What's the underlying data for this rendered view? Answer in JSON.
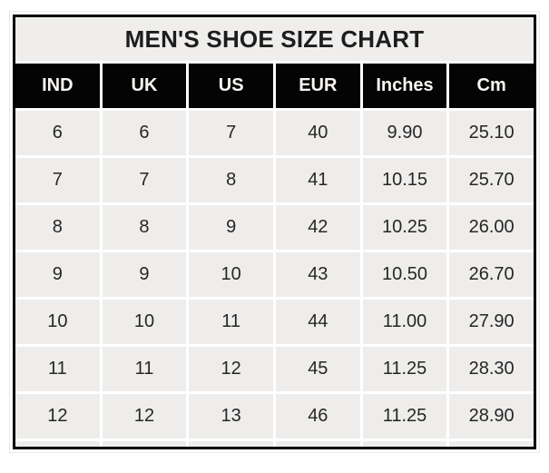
{
  "chart": {
    "title": "MEN'S SHOE SIZE CHART",
    "columns": [
      "IND",
      "UK",
      "US",
      "EUR",
      "Inches",
      "Cm"
    ],
    "rows": [
      [
        "6",
        "6",
        "7",
        "40",
        "9.90",
        "25.10"
      ],
      [
        "7",
        "7",
        "8",
        "41",
        "10.15",
        "25.70"
      ],
      [
        "8",
        "8",
        "9",
        "42",
        "10.25",
        "26.00"
      ],
      [
        "9",
        "9",
        "10",
        "43",
        "10.50",
        "26.70"
      ],
      [
        "10",
        "10",
        "11",
        "44",
        "11.00",
        "27.90"
      ],
      [
        "11",
        "11",
        "12",
        "45",
        "11.25",
        "28.30"
      ],
      [
        "12",
        "12",
        "13",
        "46",
        "11.25",
        "28.90"
      ]
    ]
  },
  "chart_data": {
    "type": "table",
    "title": "MEN'S SHOE SIZE CHART",
    "columns": [
      "IND",
      "UK",
      "US",
      "EUR",
      "Inches",
      "Cm"
    ],
    "rows": [
      [
        6,
        6,
        7,
        40,
        9.9,
        25.1
      ],
      [
        7,
        7,
        8,
        41,
        10.15,
        25.7
      ],
      [
        8,
        8,
        9,
        42,
        10.25,
        26.0
      ],
      [
        9,
        9,
        10,
        43,
        10.5,
        26.7
      ],
      [
        10,
        10,
        11,
        44,
        11.0,
        27.9
      ],
      [
        11,
        11,
        12,
        45,
        11.25,
        28.3
      ],
      [
        12,
        12,
        13,
        46,
        11.25,
        28.9
      ]
    ],
    "layout_hints": {
      "header_style": "black background, white bold text",
      "body_style": "light gray cells with white gridlines",
      "grid": "on"
    }
  },
  "colors": {
    "header_bg": "#040404",
    "header_text": "#faf7f2",
    "cell_bg": "#eeedeb",
    "title_band_bg": "#efeeec",
    "gridline": "#ffffff",
    "outer_border": "#000000",
    "text": "#262626"
  }
}
